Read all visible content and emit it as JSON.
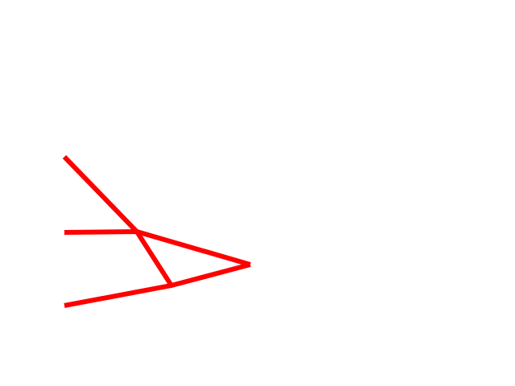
{
  "canvas": {
    "background": "#ffffff"
  },
  "drawing": {
    "stroke_color": "#ff0000"
  }
}
